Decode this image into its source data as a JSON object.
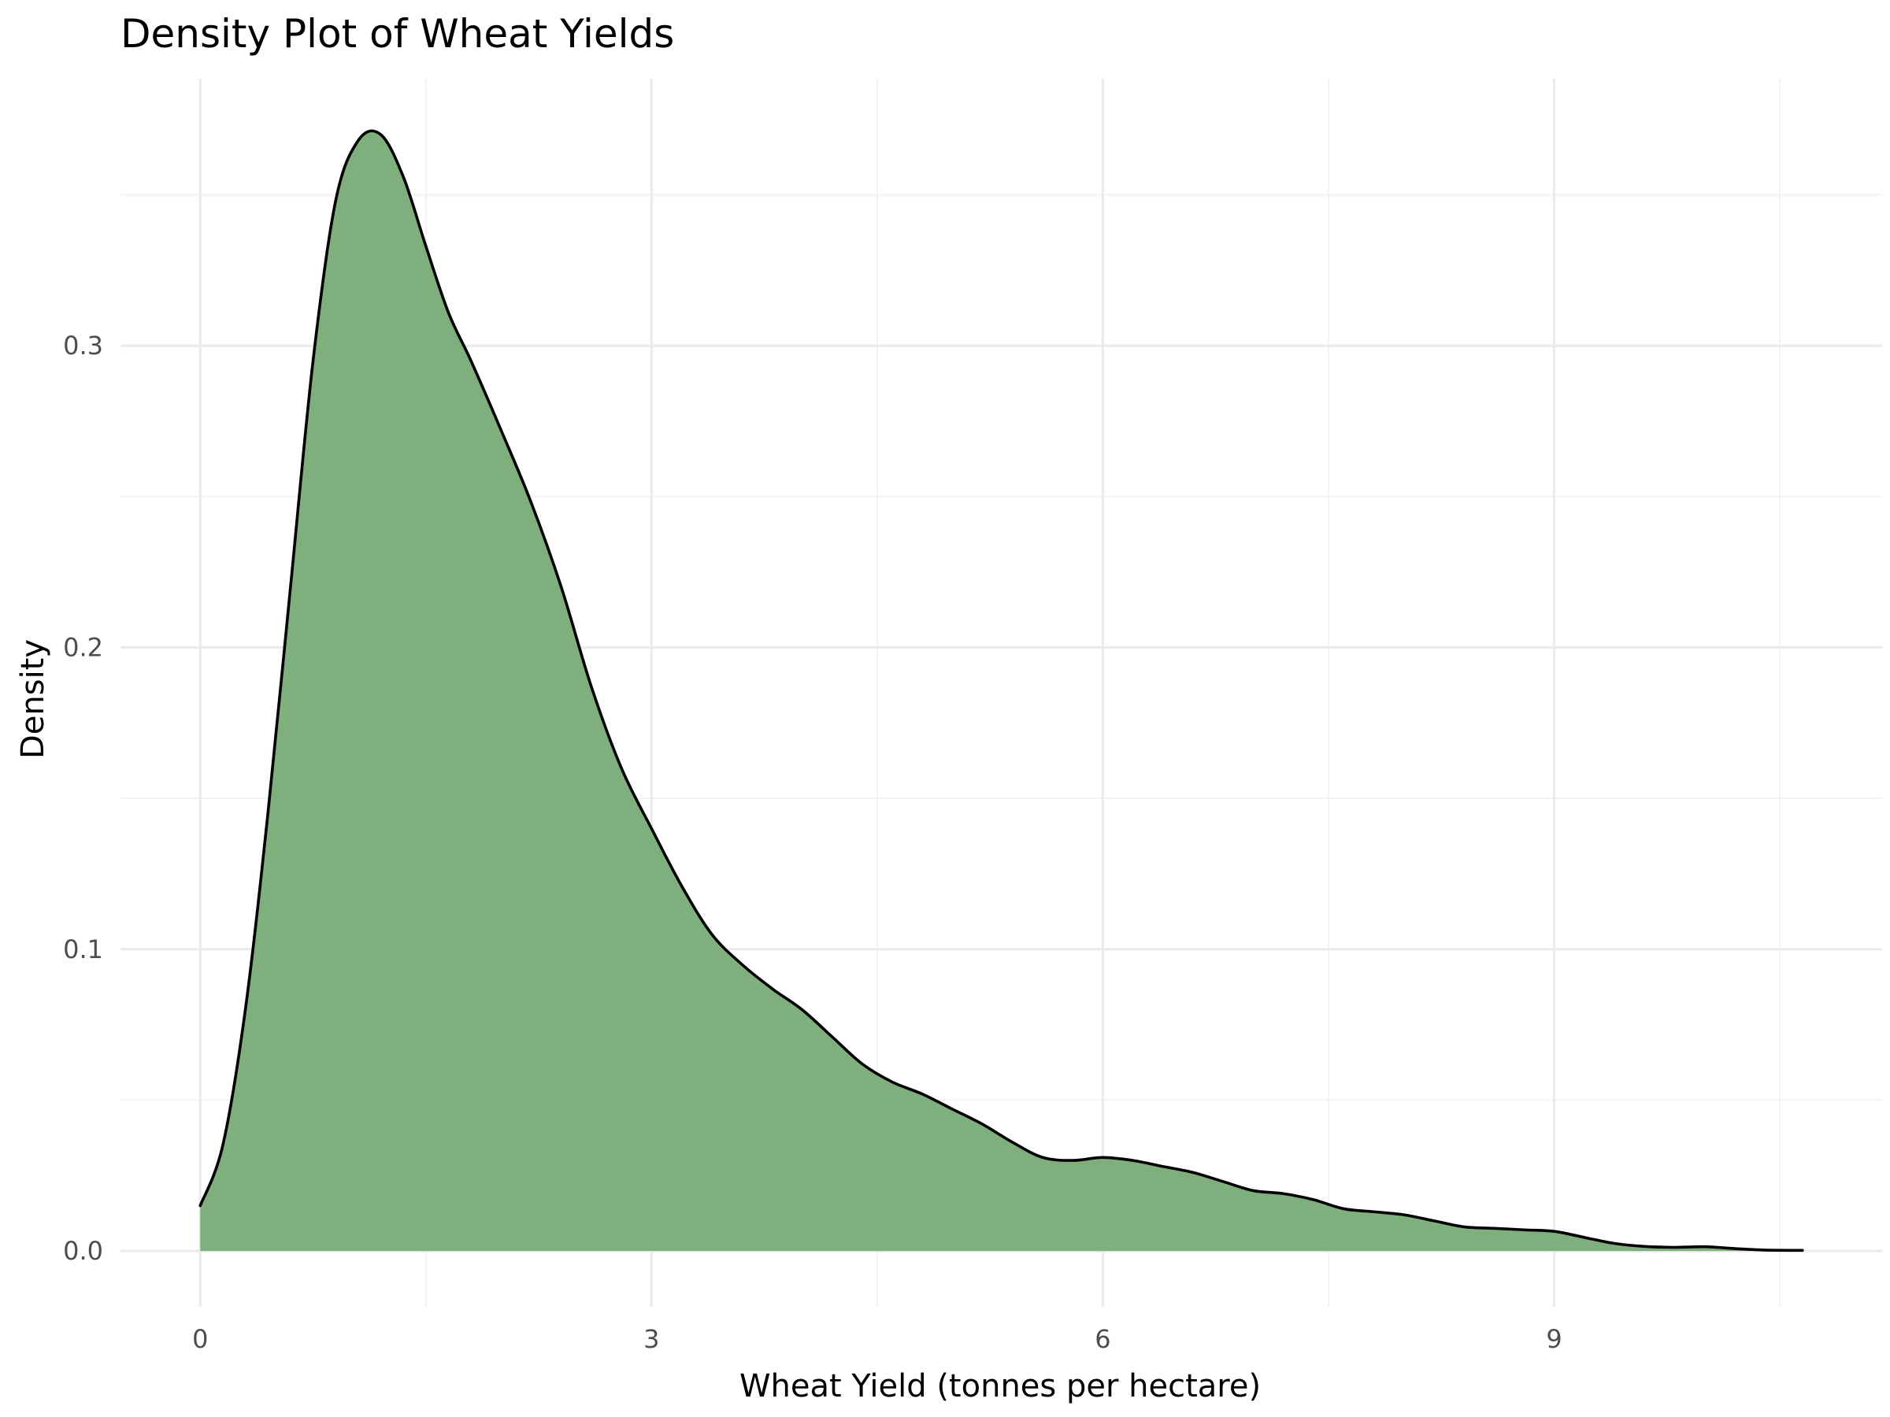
{
  "chart_data": {
    "type": "area",
    "title": "Density Plot of Wheat Yields",
    "xlabel": "Wheat Yield (tonnes per hectare)",
    "ylabel": "Density",
    "xlim": [
      -0.53,
      11.18
    ],
    "ylim": [
      -0.0185,
      0.3885
    ],
    "x_ticks": [
      {
        "value": 0,
        "label": "0"
      },
      {
        "value": 3,
        "label": "3"
      },
      {
        "value": 6,
        "label": "6"
      },
      {
        "value": 9,
        "label": "9"
      }
    ],
    "y_ticks": [
      {
        "value": 0.0,
        "label": "0.0"
      },
      {
        "value": 0.1,
        "label": "0.1"
      },
      {
        "value": 0.2,
        "label": "0.2"
      },
      {
        "value": 0.3,
        "label": "0.3"
      }
    ],
    "x_minor": [
      1.5,
      4.5,
      7.5,
      10.5
    ],
    "y_minor": [
      0.05,
      0.15,
      0.25,
      0.35
    ],
    "grid": true,
    "legend": "none",
    "series": [
      {
        "fill_color": "#7faf7c",
        "line_color": "#000000",
        "x": [
          0,
          0.15,
          0.3,
          0.45,
          0.6,
          0.75,
          0.9,
          1.05,
          1.2,
          1.35,
          1.5,
          1.65,
          1.8,
          2.0,
          2.2,
          2.4,
          2.6,
          2.8,
          3.0,
          3.2,
          3.4,
          3.6,
          3.8,
          4.0,
          4.2,
          4.4,
          4.6,
          4.8,
          5.0,
          5.2,
          5.4,
          5.6,
          5.8,
          6.0,
          6.2,
          6.4,
          6.6,
          6.8,
          7.0,
          7.2,
          7.4,
          7.6,
          7.8,
          8.0,
          8.2,
          8.4,
          8.6,
          8.8,
          9.0,
          9.2,
          9.4,
          9.6,
          9.8,
          10.0,
          10.2,
          10.4,
          10.65
        ],
        "y": [
          0.015,
          0.035,
          0.08,
          0.145,
          0.22,
          0.295,
          0.348,
          0.368,
          0.37,
          0.356,
          0.333,
          0.311,
          0.295,
          0.272,
          0.248,
          0.22,
          0.187,
          0.16,
          0.14,
          0.121,
          0.105,
          0.095,
          0.087,
          0.08,
          0.071,
          0.062,
          0.056,
          0.052,
          0.047,
          0.042,
          0.036,
          0.031,
          0.03,
          0.031,
          0.03,
          0.028,
          0.026,
          0.023,
          0.02,
          0.019,
          0.017,
          0.014,
          0.013,
          0.012,
          0.01,
          0.008,
          0.0075,
          0.007,
          0.0065,
          0.0045,
          0.0025,
          0.0015,
          0.0012,
          0.0014,
          0.0008,
          0.0003,
          0.0002
        ]
      }
    ]
  }
}
